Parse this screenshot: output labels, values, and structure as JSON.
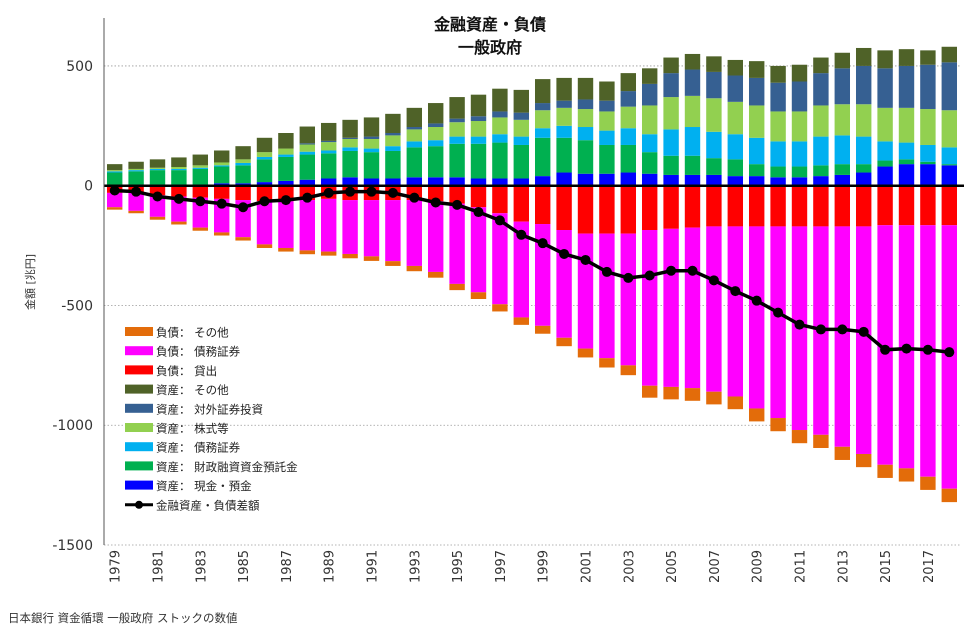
{
  "chart_data": {
    "type": "bar",
    "title": "金融資産・負債",
    "subtitle": "一般政府",
    "ylabel": "金額 [兆円]",
    "xlabel": "",
    "ylim": [
      -1500,
      650
    ],
    "yticks": [
      500,
      0,
      -500,
      -1000,
      -1500
    ],
    "grid": true,
    "legend_position": "bottom-left",
    "source": "日本銀行 資金循環 一般政府 ストックの数値",
    "x": [
      1979,
      1980,
      1981,
      1982,
      1983,
      1984,
      1985,
      1986,
      1987,
      1988,
      1989,
      1990,
      1991,
      1992,
      1993,
      1994,
      1995,
      1996,
      1997,
      1998,
      1999,
      2000,
      2001,
      2002,
      2003,
      2004,
      2005,
      2006,
      2007,
      2008,
      2009,
      2010,
      2011,
      2012,
      2013,
      2014,
      2015,
      2016,
      2017,
      2018
    ],
    "x_tick_labels": [
      "1979",
      "1981",
      "1983",
      "1985",
      "1987",
      "1989",
      "1991",
      "1993",
      "1995",
      "1997",
      "1999",
      "2001",
      "2003",
      "2005",
      "2007",
      "2009",
      "2011",
      "2013",
      "2015",
      "2017"
    ],
    "series": [
      {
        "name": "負債：  その他",
        "color": "#e36c0a",
        "stack": "neg",
        "values": [
          -10,
          -10,
          -12,
          -12,
          -13,
          -13,
          -14,
          -15,
          -15,
          -16,
          -17,
          -18,
          -19,
          -20,
          -22,
          -24,
          -26,
          -28,
          -30,
          -31,
          -33,
          -35,
          -37,
          -39,
          -41,
          -50,
          -52,
          -53,
          -53,
          -53,
          -54,
          -55,
          -55,
          -55,
          -55,
          -55,
          -55,
          -55,
          -55,
          -56
        ]
      },
      {
        "name": "負債：  債務証券",
        "color": "#ff00ff",
        "stack": "neg",
        "values": [
          -60,
          -75,
          -90,
          -105,
          -125,
          -140,
          -155,
          -180,
          -195,
          -210,
          -220,
          -225,
          -235,
          -255,
          -275,
          -295,
          -335,
          -355,
          -380,
          -400,
          -425,
          -450,
          -480,
          -520,
          -550,
          -650,
          -660,
          -670,
          -690,
          -710,
          -760,
          -800,
          -850,
          -870,
          -920,
          -950,
          -1000,
          -1015,
          -1050,
          -1100
        ]
      },
      {
        "name": "負債：  貸出",
        "color": "#ff0000",
        "stack": "neg",
        "values": [
          -30,
          -30,
          -40,
          -45,
          -50,
          -55,
          -60,
          -65,
          -65,
          -60,
          -55,
          -60,
          -60,
          -60,
          -60,
          -65,
          -75,
          -90,
          -115,
          -150,
          -160,
          -185,
          -200,
          -200,
          -200,
          -185,
          -180,
          -175,
          -170,
          -170,
          -170,
          -170,
          -170,
          -170,
          -170,
          -170,
          -165,
          -165,
          -165,
          -165
        ]
      },
      {
        "name": "資産：  その他",
        "color": "#4f6228",
        "stack": "pos",
        "values": [
          25,
          30,
          35,
          40,
          45,
          50,
          55,
          60,
          65,
          70,
          75,
          75,
          80,
          80,
          80,
          85,
          90,
          90,
          95,
          95,
          100,
          95,
          90,
          80,
          75,
          65,
          65,
          65,
          65,
          65,
          70,
          70,
          70,
          65,
          65,
          75,
          75,
          70,
          60,
          65
        ]
      },
      {
        "name": "資産：  対外証券投資",
        "color": "#366092",
        "stack": "pos",
        "values": [
          0,
          0,
          0,
          0,
          0,
          0,
          0,
          0,
          0,
          5,
          5,
          5,
          10,
          10,
          10,
          15,
          15,
          20,
          25,
          30,
          30,
          30,
          40,
          45,
          65,
          90,
          100,
          110,
          110,
          110,
          115,
          120,
          125,
          135,
          150,
          160,
          165,
          175,
          185,
          200
        ]
      },
      {
        "name": "資産：  株式等",
        "color": "#92d050",
        "stack": "pos",
        "values": [
          5,
          5,
          5,
          8,
          10,
          12,
          15,
          20,
          25,
          30,
          35,
          35,
          40,
          45,
          50,
          55,
          60,
          65,
          70,
          70,
          75,
          75,
          75,
          80,
          90,
          120,
          135,
          130,
          140,
          135,
          135,
          125,
          125,
          130,
          130,
          135,
          140,
          145,
          150,
          155
        ]
      },
      {
        "name": "資産：  債務証券",
        "color": "#00b0f0",
        "stack": "pos",
        "values": [
          5,
          5,
          5,
          5,
          5,
          5,
          10,
          10,
          10,
          12,
          12,
          15,
          15,
          20,
          25,
          25,
          30,
          30,
          35,
          35,
          40,
          50,
          55,
          60,
          70,
          75,
          110,
          120,
          110,
          105,
          110,
          105,
          105,
          120,
          120,
          115,
          80,
          70,
          70,
          70
        ]
      },
      {
        "name": "資産：  財政融資資金預託金",
        "color": "#00b050",
        "stack": "pos",
        "values": [
          50,
          55,
          60,
          60,
          65,
          70,
          75,
          95,
          100,
          105,
          105,
          110,
          110,
          115,
          125,
          130,
          140,
          145,
          150,
          140,
          160,
          145,
          140,
          120,
          115,
          90,
          80,
          80,
          70,
          70,
          50,
          45,
          45,
          45,
          45,
          35,
          25,
          20,
          10,
          5
        ]
      },
      {
        "name": "資産：  現金・預金",
        "color": "#0000ff",
        "stack": "pos",
        "values": [
          5,
          5,
          5,
          5,
          5,
          10,
          10,
          15,
          20,
          25,
          30,
          35,
          30,
          30,
          35,
          35,
          35,
          30,
          30,
          30,
          40,
          55,
          50,
          50,
          55,
          50,
          45,
          45,
          45,
          40,
          40,
          35,
          35,
          40,
          45,
          55,
          80,
          90,
          90,
          85
        ]
      },
      {
        "name": "金融資産・負債差額",
        "color": "#000000",
        "type": "line",
        "values": [
          -20,
          -25,
          -45,
          -55,
          -65,
          -75,
          -90,
          -65,
          -60,
          -50,
          -30,
          -25,
          -25,
          -30,
          -50,
          -70,
          -80,
          -110,
          -145,
          -205,
          -240,
          -285,
          -310,
          -360,
          -385,
          -375,
          -355,
          -355,
          -395,
          -440,
          -480,
          -530,
          -580,
          -600,
          -600,
          -610,
          -685,
          -680,
          -685,
          -695
        ]
      }
    ]
  }
}
